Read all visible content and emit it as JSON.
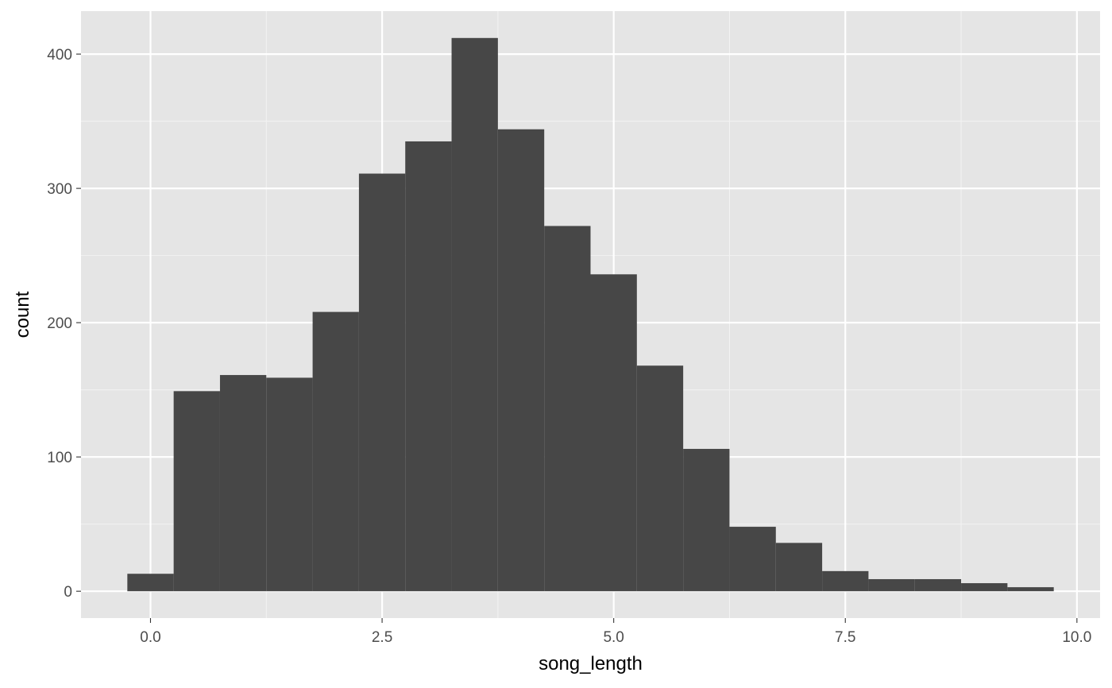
{
  "chart_data": {
    "type": "bar",
    "subtype": "histogram",
    "xlabel": "song_length",
    "ylabel": "count",
    "xlim": [
      -0.75,
      10.25
    ],
    "ylim": [
      -20,
      432
    ],
    "x_ticks": [
      0.0,
      2.5,
      5.0,
      7.5,
      10.0
    ],
    "x_tick_labels": [
      "0.0",
      "2.5",
      "5.0",
      "7.5",
      "10.0"
    ],
    "y_ticks": [
      0,
      100,
      200,
      300,
      400
    ],
    "y_tick_labels": [
      "0",
      "100",
      "200",
      "300",
      "400"
    ],
    "grid": true,
    "bin_width": 0.5,
    "bins": [
      {
        "x_start": -0.25,
        "x_end": 0.25,
        "count": 13
      },
      {
        "x_start": 0.25,
        "x_end": 0.75,
        "count": 149
      },
      {
        "x_start": 0.75,
        "x_end": 1.25,
        "count": 161
      },
      {
        "x_start": 1.25,
        "x_end": 1.75,
        "count": 159
      },
      {
        "x_start": 1.75,
        "x_end": 2.25,
        "count": 208
      },
      {
        "x_start": 2.25,
        "x_end": 2.75,
        "count": 311
      },
      {
        "x_start": 2.75,
        "x_end": 3.25,
        "count": 335
      },
      {
        "x_start": 3.25,
        "x_end": 3.75,
        "count": 412
      },
      {
        "x_start": 3.75,
        "x_end": 4.25,
        "count": 344
      },
      {
        "x_start": 4.25,
        "x_end": 4.75,
        "count": 272
      },
      {
        "x_start": 4.75,
        "x_end": 5.25,
        "count": 236
      },
      {
        "x_start": 5.25,
        "x_end": 5.75,
        "count": 168
      },
      {
        "x_start": 5.75,
        "x_end": 6.25,
        "count": 106
      },
      {
        "x_start": 6.25,
        "x_end": 6.75,
        "count": 48
      },
      {
        "x_start": 6.75,
        "x_end": 7.25,
        "count": 36
      },
      {
        "x_start": 7.25,
        "x_end": 7.75,
        "count": 15
      },
      {
        "x_start": 7.75,
        "x_end": 8.25,
        "count": 9
      },
      {
        "x_start": 8.25,
        "x_end": 8.75,
        "count": 9
      },
      {
        "x_start": 8.75,
        "x_end": 9.25,
        "count": 6
      },
      {
        "x_start": 9.25,
        "x_end": 9.75,
        "count": 3
      }
    ],
    "colors": {
      "panel_background": "#e5e5e5",
      "grid_major": "#ffffff",
      "grid_minor": "#f2f2f2",
      "bar_fill": "#474747",
      "tick_mark": "#333333",
      "tick_label": "#4d4d4d",
      "axis_title": "#000000"
    }
  }
}
